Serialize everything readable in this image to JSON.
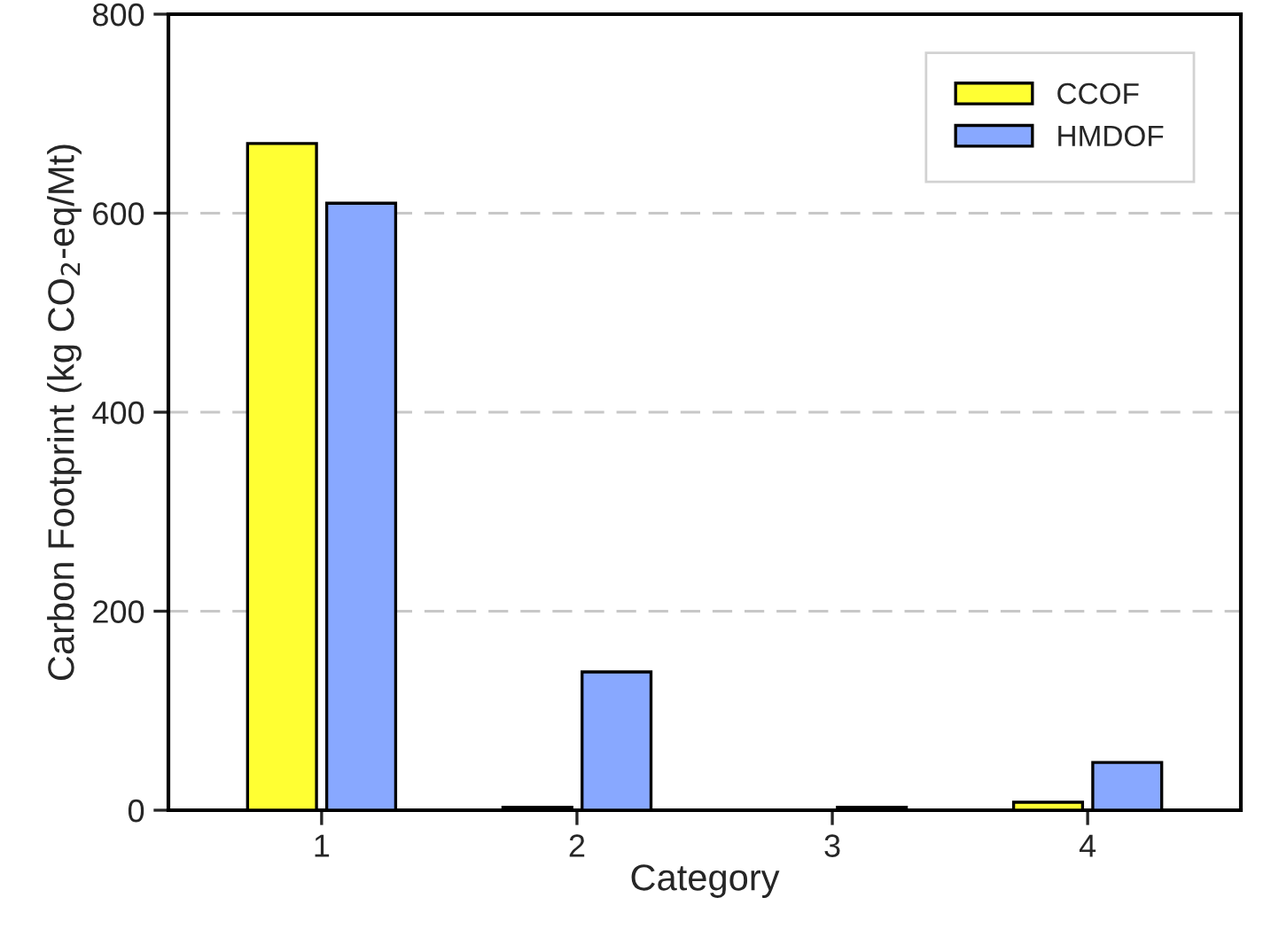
{
  "chart_data": {
    "type": "bar",
    "xlabel": "Category",
    "ylabel": "Carbon Footprint (kg CO$_{2}$-eq/Mt)",
    "categories": [
      "1",
      "2",
      "3",
      "4"
    ],
    "series": [
      {
        "name": "CCOF",
        "color": "#ffff33",
        "values": [
          670,
          3,
          null,
          8
        ]
      },
      {
        "name": "HMDOF",
        "color": "#88a8ff",
        "values": [
          610,
          139,
          3,
          48
        ]
      }
    ],
    "ylim": [
      0,
      800
    ],
    "yticks": [
      0,
      200,
      400,
      600,
      800
    ],
    "grid": "y",
    "legend": "top right"
  }
}
